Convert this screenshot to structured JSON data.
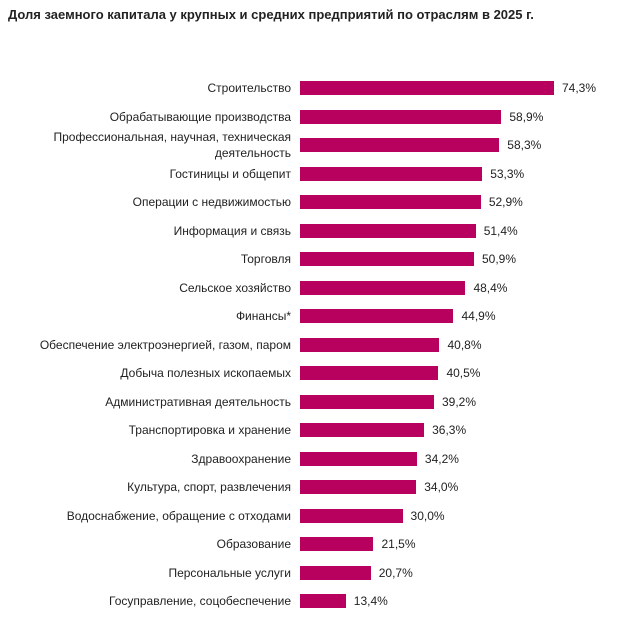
{
  "chart_data": {
    "type": "bar",
    "orientation": "horizontal",
    "title": "Доля заемного капитала у крупных и средних предприятий по отраслям в 2025 г.",
    "color": "#b8005e",
    "categories": [
      "Строительство",
      "Обрабатывающие производства",
      "Профессиональная, научная, техническая\nдеятельность",
      "Гостиницы и общепит",
      "Операции с недвижимостью",
      "Информация и связь",
      "Торговля",
      "Сельское хозяйство",
      "Финансы*",
      "Обеспечение электроэнергией, газом, паром",
      "Добыча полезных ископаемых",
      "Административная деятельность",
      "Транспортировка и хранение",
      "Здравоохранение",
      "Культура, спорт, развлечения",
      "Водоснабжение, обращение с отходами",
      "Образование",
      "Персональные услуги",
      "Госуправление, соцобеспечение"
    ],
    "values": [
      74.3,
      58.9,
      58.3,
      53.3,
      52.9,
      51.4,
      50.9,
      48.4,
      44.9,
      40.8,
      40.5,
      39.2,
      36.3,
      34.2,
      34.0,
      30.0,
      21.5,
      20.7,
      13.4
    ],
    "value_labels": [
      "74,3%",
      "58,9%",
      "58,3%",
      "53,3%",
      "52,9%",
      "51,4%",
      "50,9%",
      "48,4%",
      "44,9%",
      "40,8%",
      "40,5%",
      "39,2%",
      "36,3%",
      "34,2%",
      "34,0%",
      "30,0%",
      "21,5%",
      "20,7%",
      "13,4%"
    ]
  }
}
